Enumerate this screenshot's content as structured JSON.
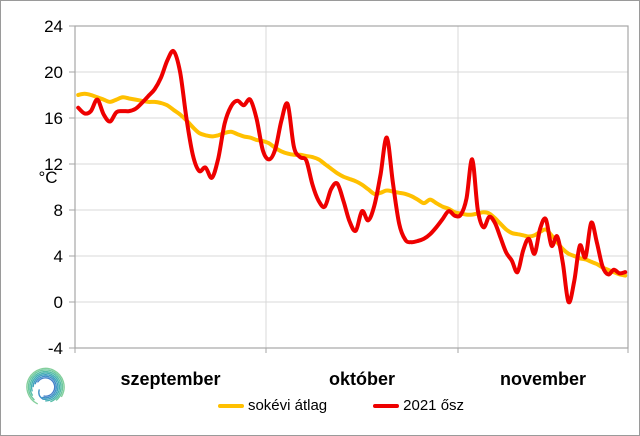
{
  "chart": {
    "y_axis": {
      "unit": "°C",
      "min": -4,
      "max": 24,
      "step": 4,
      "tick_labels": [
        "24",
        "20",
        "16",
        "12",
        "8",
        "4",
        "0",
        "-4"
      ]
    },
    "x_axis": {
      "month_labels": [
        "szeptember",
        "október",
        "november"
      ]
    },
    "legend": [
      {
        "label": "sokévi átlag",
        "color": "#ffc000"
      },
      {
        "label": "2021 ősz",
        "color": "#ee0000"
      }
    ],
    "colors": {
      "gridline": "#d9d9d9",
      "axis": "#a6a6a6",
      "average_line": "#ffc000",
      "year_line": "#ee0000"
    },
    "logo_icon": "spiral-cyclone-logo"
  },
  "chart_data": {
    "type": "line",
    "title": "",
    "ylabel": "°C",
    "ylim": [
      -4,
      24
    ],
    "ytick_step": 4,
    "grid": true,
    "legend_position": "bottom",
    "months": [
      {
        "label": "szeptember",
        "days": 30
      },
      {
        "label": "október",
        "days": 31
      },
      {
        "label": "november",
        "days": 30
      }
    ],
    "series": [
      {
        "name": "sokévi átlag",
        "color": "#ffc000",
        "values_by_month": [
          [
            18.0,
            18.1,
            18.0,
            17.8,
            17.6,
            17.4,
            17.6,
            17.8,
            17.7,
            17.6,
            17.5,
            17.4,
            17.4,
            17.3,
            17.1,
            16.7,
            16.3,
            15.8,
            15.2,
            14.7,
            14.5,
            14.4,
            14.5,
            14.7,
            14.8,
            14.6,
            14.4,
            14.3,
            14.1,
            14.0
          ],
          [
            13.8,
            13.4,
            13.1,
            12.9,
            12.8,
            12.8,
            12.7,
            12.6,
            12.4,
            12.0,
            11.6,
            11.2,
            10.9,
            10.7,
            10.5,
            10.2,
            9.8,
            9.4,
            9.5,
            9.7,
            9.6,
            9.5,
            9.4,
            9.2,
            8.9,
            8.6,
            8.9,
            8.6,
            8.3,
            8.1,
            7.8
          ],
          [
            7.7,
            7.6,
            7.6,
            7.7,
            7.8,
            7.7,
            7.3,
            6.8,
            6.3,
            6.0,
            5.9,
            5.8,
            5.7,
            5.8,
            6.1,
            6.3,
            5.8,
            5.2,
            4.6,
            4.2,
            4.0,
            3.8,
            3.7,
            3.5,
            3.3,
            3.0,
            2.8,
            2.6,
            2.4,
            2.3
          ]
        ]
      },
      {
        "name": "2021 ősz",
        "color": "#ee0000",
        "values_by_month": [
          [
            16.9,
            16.4,
            16.6,
            17.6,
            16.3,
            15.7,
            16.5,
            16.6,
            16.6,
            16.8,
            17.3,
            17.9,
            18.5,
            19.5,
            21.0,
            21.8,
            20.0,
            16.0,
            12.8,
            11.4,
            11.7,
            10.8,
            12.5,
            15.5,
            17.0,
            17.5,
            17.1,
            17.6,
            16.0,
            13.2
          ],
          [
            12.4,
            13.3,
            15.8,
            17.2,
            13.5,
            12.6,
            12.3,
            10.2,
            8.8,
            8.3,
            9.8,
            10.3,
            8.8,
            7.0,
            6.2,
            7.9,
            7.1,
            8.4,
            11.1,
            14.3,
            10.3,
            6.8,
            5.4,
            5.2,
            5.3,
            5.5,
            5.9,
            6.5,
            7.2,
            7.9,
            7.5
          ],
          [
            7.6,
            9.0,
            12.4,
            8.0,
            6.5,
            7.4,
            6.9,
            5.6,
            4.3,
            3.6,
            2.6,
            4.5,
            5.5,
            4.2,
            6.4,
            7.2,
            4.9,
            5.7,
            3.4,
            0.0,
            1.8,
            4.9,
            3.9,
            6.9,
            5.2,
            3.1,
            2.4,
            2.8,
            2.5,
            2.6
          ]
        ]
      }
    ]
  }
}
